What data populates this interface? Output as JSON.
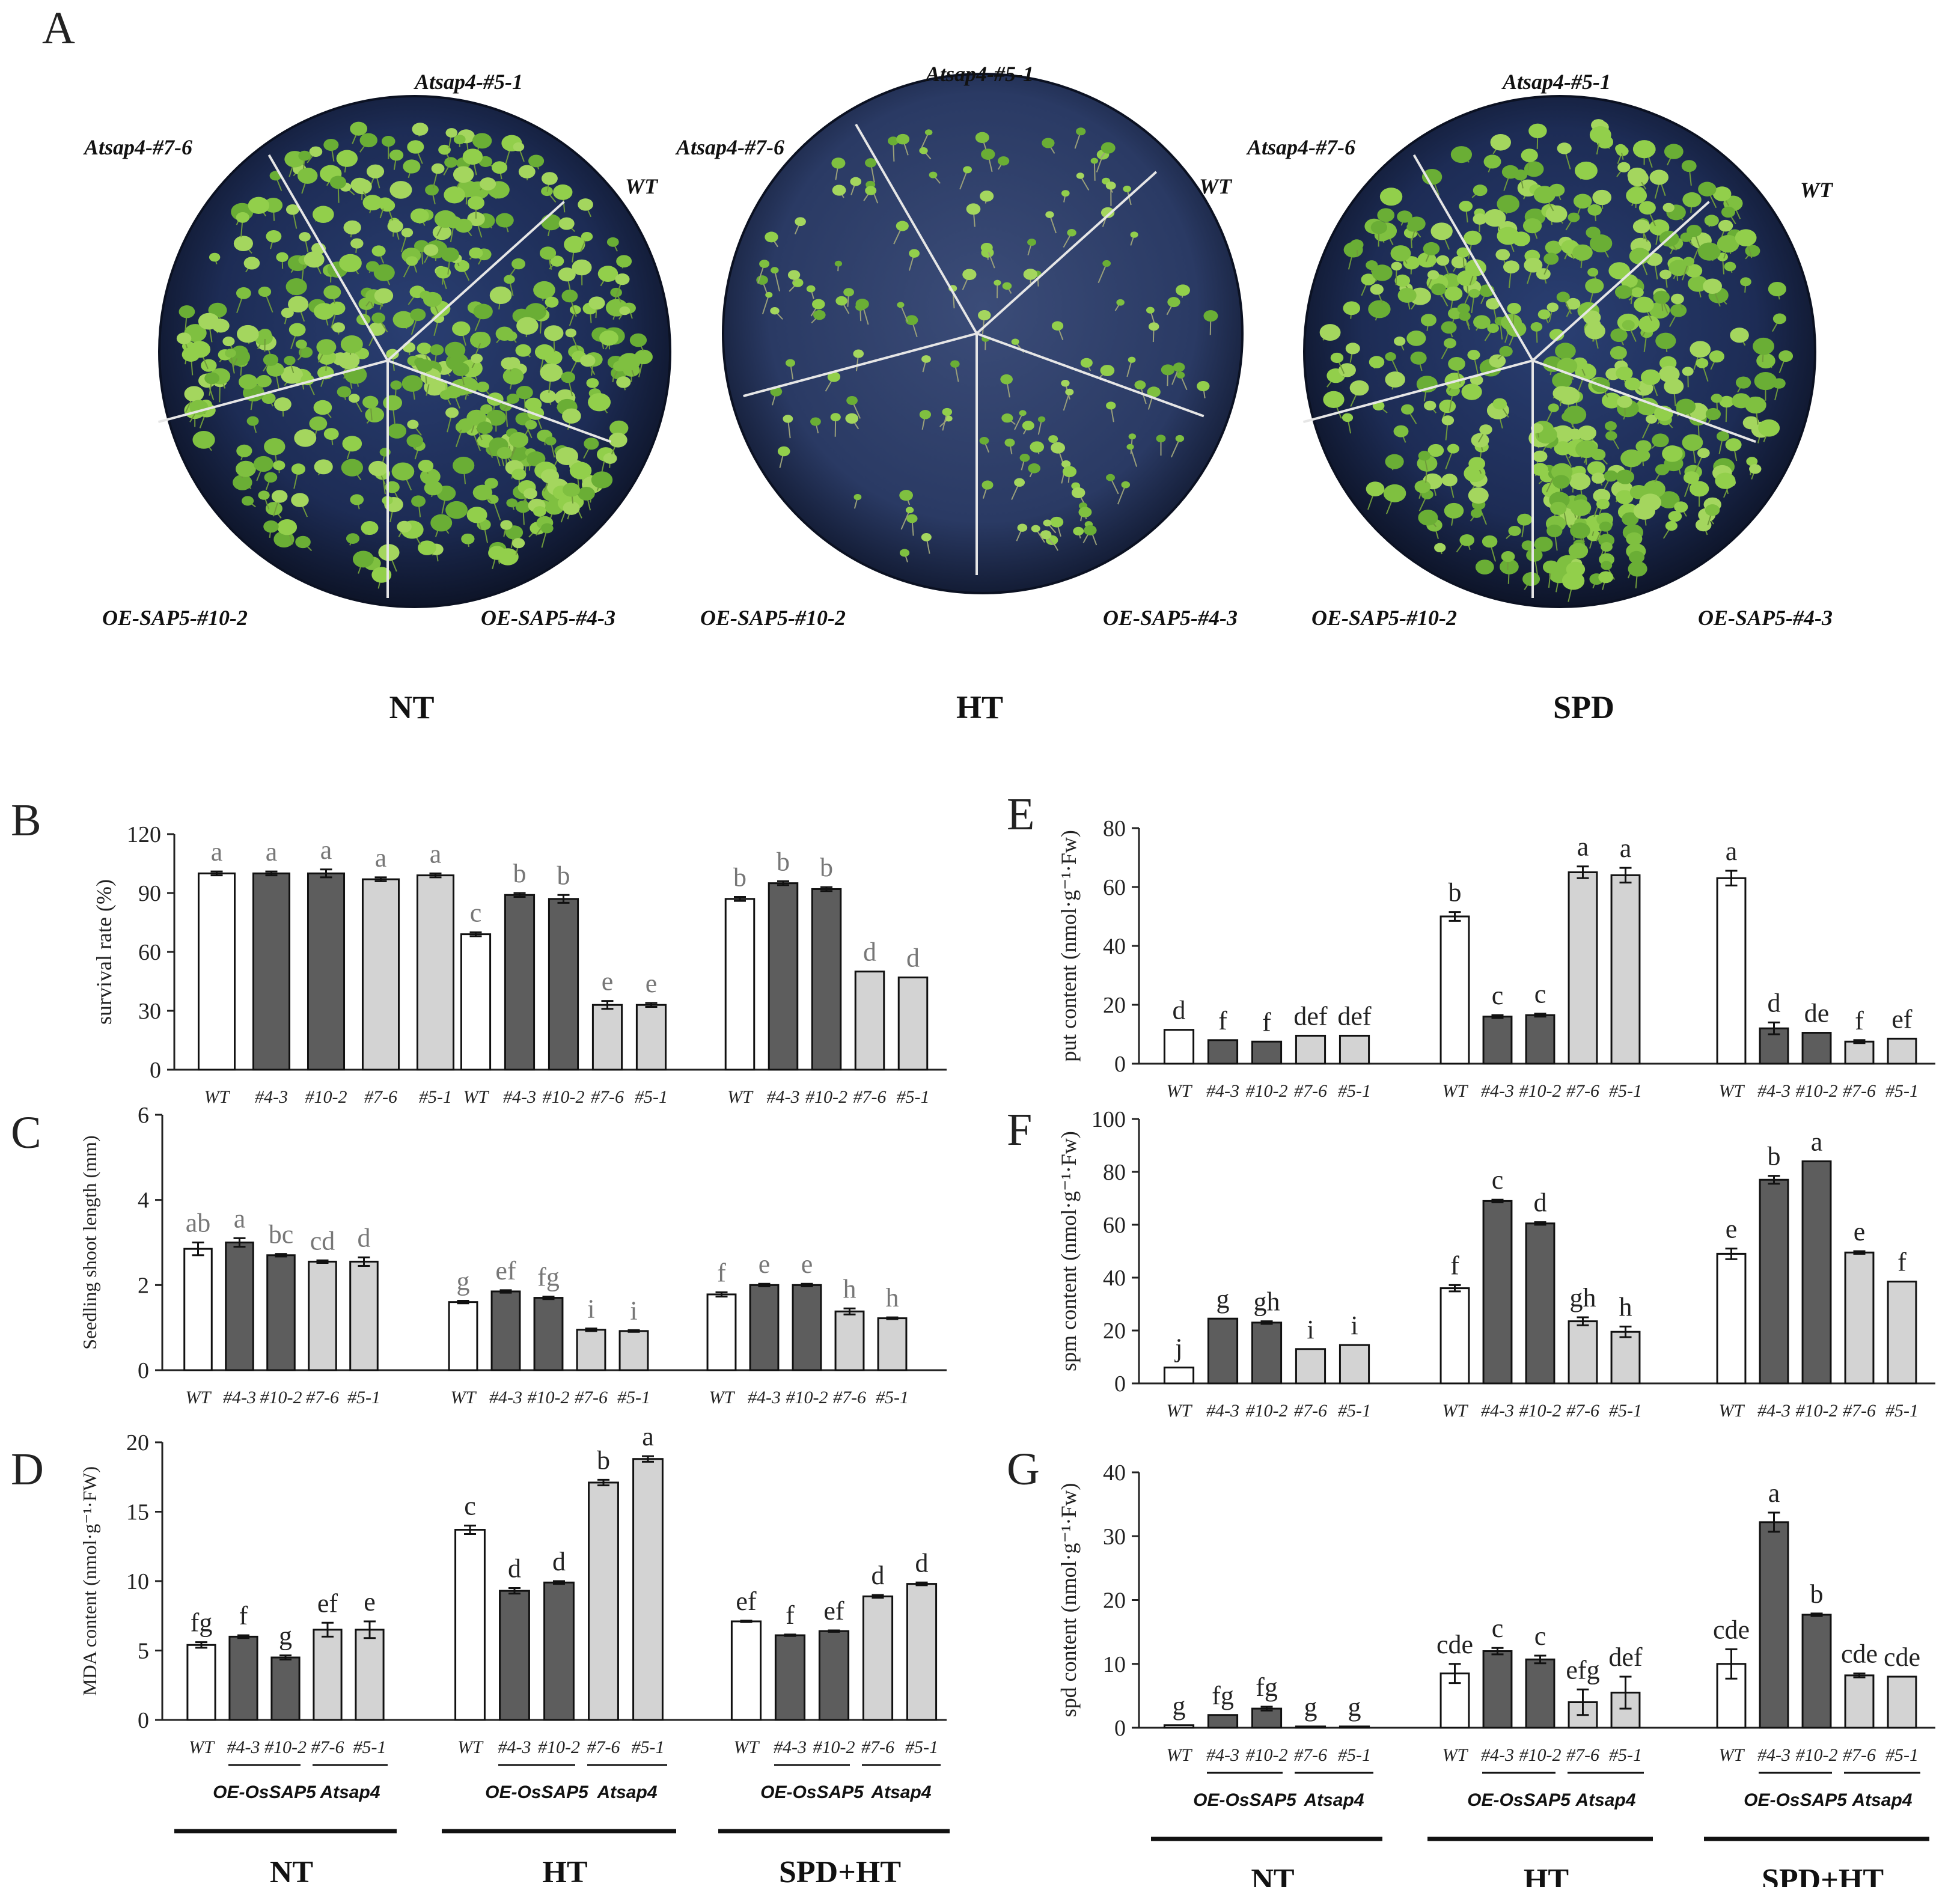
{
  "colors": {
    "wt": "#ffffff",
    "oe": "#5d5d5d",
    "at": "#d3d3d3",
    "dish_edge": "#10182e",
    "dish_mid": "#253866",
    "plant": "#7fc040"
  },
  "panel_a": {
    "letter": "A",
    "dishes": [
      {
        "condition": "NT",
        "labels": {
          "top": "Atsap4-#5-1",
          "upper_left": "Atsap4-#7-6",
          "upper_right": "WT",
          "lower_left": "OE-SAP5-#10-2",
          "lower_right": "OE-SAP5-#4-3"
        }
      },
      {
        "condition": "HT",
        "labels": {
          "top": "Atsap4-#5-1",
          "upper_left": "Atsap4-#7-6",
          "upper_right": "WT",
          "lower_left": "OE-SAP5-#10-2",
          "lower_right": "OE-SAP5-#4-3"
        }
      },
      {
        "condition": "SPD",
        "labels": {
          "top": "Atsap4-#5-1",
          "upper_left": "Atsap4-#7-6",
          "upper_right": "WT",
          "lower_left": "OE-SAP5-#10-2",
          "lower_right": "OE-SAP5-#4-3"
        }
      }
    ]
  },
  "legend_groups": {
    "oe": "OE-OsSAP5",
    "at": "Atsap4"
  },
  "chart_data": [
    {
      "panel": "B",
      "type": "bar",
      "ylabel": "survival rate (%)",
      "ylim": [
        0,
        120
      ],
      "yticks": [
        0,
        30,
        60,
        90,
        120
      ],
      "groups": [
        "",
        "",
        ""
      ],
      "categories": [
        "WT",
        "#4-3",
        "#10-2",
        "#7-6",
        "#5-1"
      ],
      "series": [
        {
          "name": "NT",
          "values": [
            100,
            100,
            100,
            97,
            99
          ],
          "errors": [
            1,
            1,
            2,
            1,
            1
          ],
          "letters": [
            "a",
            "a",
            "a",
            "a",
            "a"
          ]
        },
        {
          "name": "HT",
          "values": [
            69,
            89,
            87,
            33,
            33
          ],
          "errors": [
            1,
            1,
            2,
            2,
            1
          ],
          "letters": [
            "c",
            "b",
            "b",
            "e",
            "e"
          ]
        },
        {
          "name": "SPD+HT",
          "values": [
            87,
            95,
            92,
            50,
            47
          ],
          "errors": [
            1,
            1,
            1,
            0,
            0
          ],
          "letters": [
            "b",
            "b",
            "b",
            "d",
            "d"
          ]
        }
      ]
    },
    {
      "panel": "C",
      "type": "bar",
      "ylabel": "Seedling shoot length (mm)",
      "ylim": [
        0,
        6
      ],
      "yticks": [
        0,
        2,
        4,
        6
      ],
      "groups": [
        "",
        "",
        ""
      ],
      "categories": [
        "WT",
        "#4-3",
        "#10-2",
        "#7-6",
        "#5-1"
      ],
      "series": [
        {
          "name": "NT",
          "values": [
            2.85,
            3.0,
            2.7,
            2.55,
            2.55
          ],
          "errors": [
            0.15,
            0.1,
            0.03,
            0.03,
            0.1
          ],
          "letters": [
            "ab",
            "a",
            "bc",
            "cd",
            "d"
          ]
        },
        {
          "name": "HT",
          "values": [
            1.6,
            1.85,
            1.7,
            0.95,
            0.92
          ],
          "errors": [
            0.03,
            0.03,
            0.03,
            0.03,
            0.02
          ],
          "letters": [
            "g",
            "ef",
            "fg",
            "i",
            "i"
          ]
        },
        {
          "name": "SPD+HT",
          "values": [
            1.78,
            2.0,
            2.0,
            1.38,
            1.22
          ],
          "errors": [
            0.05,
            0.03,
            0.03,
            0.07,
            0.02
          ],
          "letters": [
            "f",
            "e",
            "e",
            "h",
            "h"
          ]
        }
      ]
    },
    {
      "panel": "D",
      "type": "bar",
      "ylabel": "MDA content (nmol·g⁻¹·FW)",
      "ylim": [
        0,
        20
      ],
      "yticks": [
        0,
        5,
        10,
        15,
        20
      ],
      "groups": [
        "NT",
        "HT",
        "SPD+HT"
      ],
      "categories": [
        "WT",
        "#4-3",
        "#10-2",
        "#7-6",
        "#5-1"
      ],
      "series": [
        {
          "name": "NT",
          "values": [
            5.4,
            6.0,
            4.5,
            6.5,
            6.5
          ],
          "errors": [
            0.2,
            0.1,
            0.15,
            0.5,
            0.6
          ],
          "letters": [
            "fg",
            "f",
            "g",
            "ef",
            "e"
          ]
        },
        {
          "name": "HT",
          "values": [
            13.7,
            9.3,
            9.9,
            17.1,
            18.8
          ],
          "errors": [
            0.3,
            0.2,
            0.1,
            0.2,
            0.2
          ],
          "letters": [
            "c",
            "d",
            "d",
            "b",
            "a"
          ]
        },
        {
          "name": "SPD+HT",
          "values": [
            7.1,
            6.1,
            6.4,
            8.9,
            9.8
          ],
          "errors": [
            0.05,
            0.05,
            0.05,
            0.1,
            0.1
          ],
          "letters": [
            "ef",
            "f",
            "ef",
            "d",
            "d"
          ]
        }
      ]
    },
    {
      "panel": "E",
      "type": "bar",
      "ylabel": "put content (nmol·g⁻¹·Fw)",
      "ylim": [
        0,
        80
      ],
      "yticks": [
        0,
        20,
        40,
        60,
        80
      ],
      "groups": [
        "",
        "",
        ""
      ],
      "categories": [
        "WT",
        "#4-3",
        "#10-2",
        "#7-6",
        "#5-1"
      ],
      "series": [
        {
          "name": "NT",
          "values": [
            11.5,
            8,
            7.5,
            9.5,
            9.5
          ],
          "errors": [
            0,
            0,
            0,
            0,
            0
          ],
          "letters": [
            "d",
            "f",
            "f",
            "def",
            "def"
          ]
        },
        {
          "name": "HT",
          "values": [
            50,
            16,
            16.5,
            65,
            64
          ],
          "errors": [
            1.5,
            0.5,
            0.5,
            2,
            2.5
          ],
          "letters": [
            "b",
            "c",
            "c",
            "a",
            "a"
          ]
        },
        {
          "name": "SPD+HT",
          "values": [
            63,
            12,
            10.5,
            7.5,
            8.5
          ],
          "errors": [
            2.5,
            2,
            0,
            0.5,
            0
          ],
          "letters": [
            "a",
            "d",
            "de",
            "f",
            "ef"
          ]
        }
      ]
    },
    {
      "panel": "F",
      "type": "bar",
      "ylabel": "spm content (nmol·g⁻¹·Fw)",
      "ylim": [
        0,
        100
      ],
      "yticks": [
        0,
        20,
        40,
        60,
        80,
        100
      ],
      "groups": [
        "",
        "",
        ""
      ],
      "categories": [
        "WT",
        "#4-3",
        "#10-2",
        "#7-6",
        "#5-1"
      ],
      "series": [
        {
          "name": "NT",
          "values": [
            6,
            24.5,
            23,
            13,
            14.5
          ],
          "errors": [
            0,
            0,
            0.5,
            0,
            0
          ],
          "letters": [
            "j",
            "g",
            "gh",
            "i",
            "i"
          ]
        },
        {
          "name": "HT",
          "values": [
            36,
            69,
            60.5,
            23.5,
            19.5
          ],
          "errors": [
            1.2,
            0.5,
            0.5,
            1.5,
            2
          ],
          "letters": [
            "f",
            "c",
            "d",
            "gh",
            "h"
          ]
        },
        {
          "name": "SPD+HT",
          "values": [
            49,
            77,
            84,
            49.5,
            38.5
          ],
          "errors": [
            2,
            1.5,
            0,
            0.5,
            0
          ],
          "letters": [
            "e",
            "b",
            "a",
            "e",
            "f"
          ]
        }
      ]
    },
    {
      "panel": "G",
      "type": "bar",
      "ylabel": "spd content (nmol·g⁻¹·Fw)",
      "ylim": [
        0,
        40
      ],
      "yticks": [
        0,
        10,
        20,
        30,
        40
      ],
      "groups": [
        "NT",
        "HT",
        "SPD+HT"
      ],
      "categories": [
        "WT",
        "#4-3",
        "#10-2",
        "#7-6",
        "#5-1"
      ],
      "series": [
        {
          "name": "NT",
          "values": [
            0.4,
            2,
            3,
            0.2,
            0.2
          ],
          "errors": [
            0,
            0,
            0.3,
            0,
            0
          ],
          "letters": [
            "g",
            "fg",
            "fg",
            "g",
            "g"
          ]
        },
        {
          "name": "HT",
          "values": [
            8.5,
            12,
            10.7,
            4,
            5.5
          ],
          "errors": [
            1.5,
            0.5,
            0.6,
            2,
            2.5
          ],
          "letters": [
            "cde",
            "c",
            "c",
            "efg",
            "def"
          ]
        },
        {
          "name": "SPD+HT",
          "values": [
            10,
            32.2,
            17.7,
            8.2,
            8
          ],
          "errors": [
            2.3,
            1.5,
            0.2,
            0.3,
            0
          ],
          "letters": [
            "cde",
            "a",
            "b",
            "cde",
            "cde"
          ]
        }
      ]
    }
  ]
}
